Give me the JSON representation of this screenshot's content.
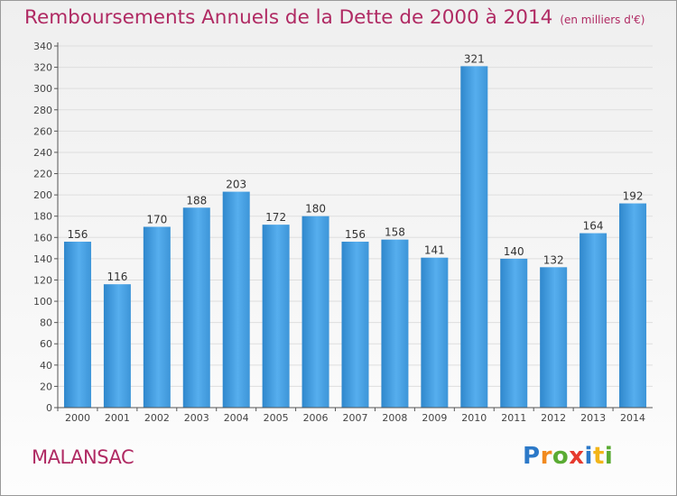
{
  "title": "Remboursements Annuels de la Dette de 2000 à 2014",
  "subtitle": "(en milliers d'€)",
  "commune": "MALANSAC",
  "brand": {
    "text": "Proxiti"
  },
  "colors": {
    "bar": "#3d95d8",
    "bar_light": "#5fb2ee",
    "title": "#b02a63"
  },
  "chart_data": {
    "type": "bar",
    "categories": [
      "2000",
      "2001",
      "2002",
      "2003",
      "2004",
      "2005",
      "2006",
      "2007",
      "2008",
      "2009",
      "2010",
      "2011",
      "2012",
      "2013",
      "2014"
    ],
    "values": [
      156,
      116,
      170,
      188,
      203,
      172,
      180,
      156,
      158,
      141,
      321,
      140,
      132,
      164,
      192
    ],
    "ylim": [
      0,
      340
    ],
    "yticks": [
      0,
      20,
      40,
      60,
      80,
      100,
      120,
      140,
      160,
      180,
      200,
      220,
      240,
      260,
      280,
      300,
      320,
      340
    ],
    "grid": true
  }
}
